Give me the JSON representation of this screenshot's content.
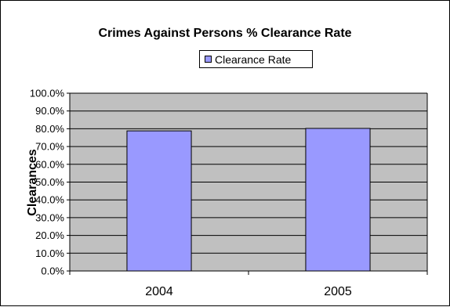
{
  "chart_data": {
    "type": "bar",
    "title": "Crimes Against Persons % Clearance Rate",
    "xlabel": "",
    "ylabel": "Clearances",
    "categories": [
      "2004",
      "2005"
    ],
    "series": [
      {
        "name": "Clearance Rate",
        "values": [
          78.8,
          80.2
        ]
      }
    ],
    "ylim": [
      0,
      100
    ],
    "yticks": [
      "0.0%",
      "10.0%",
      "20.0%",
      "30.0%",
      "40.0%",
      "50.0%",
      "60.0%",
      "70.0%",
      "80.0%",
      "90.0%",
      "100.0%"
    ],
    "grid": true,
    "legend_position": "top"
  },
  "colors": {
    "bar_fill": "#9999ff",
    "plot_background": "#c0c0c0"
  }
}
